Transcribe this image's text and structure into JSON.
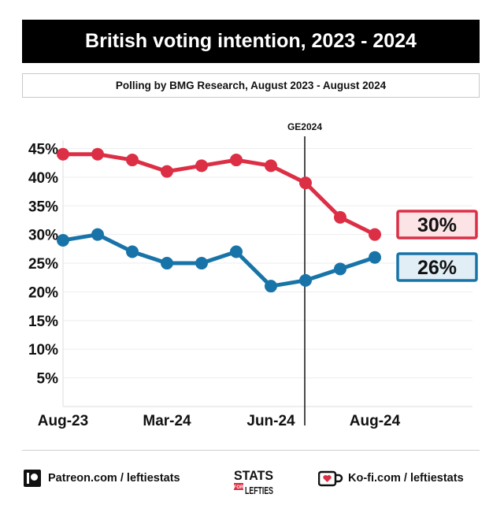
{
  "header": {
    "title": "British voting intention, 2023 - 2024",
    "subtitle": "Polling by BMG Research, August 2023 - August 2024"
  },
  "chart_data": {
    "type": "line",
    "title": "British voting intention, 2023 - 2024",
    "subtitle": "Polling by BMG Research, August 2023 - August 2024",
    "x_tick_labels": [
      "Aug-23",
      "Mar-24",
      "Jun-24",
      "Aug-24"
    ],
    "x_tick_positions": [
      0,
      3,
      6,
      9
    ],
    "y_tick_labels": [
      "45%",
      "40%",
      "35%",
      "30%",
      "25%",
      "20%",
      "15%",
      "10%",
      "5%"
    ],
    "ylim": [
      0,
      45
    ],
    "grid": true,
    "annotation": {
      "label": "GE2024",
      "x": 7
    },
    "series": [
      {
        "color": "#dc2f45",
        "values": [
          44,
          44,
          43,
          41,
          42,
          43,
          42,
          39,
          33,
          30
        ],
        "end_label": "30%"
      },
      {
        "color": "#1874a8",
        "values": [
          29,
          30,
          27,
          25,
          25,
          27,
          21,
          22,
          24,
          26
        ],
        "end_label": "26%"
      }
    ]
  },
  "footer": {
    "patreon": "Patreon.com / leftiestats",
    "kofi": "Ko-fi.com / leftiestats",
    "logo_top": "STATS",
    "logo_mid": "FOR",
    "logo_bottom": "LEFTIES",
    "patreon_icon": "patreon-icon",
    "kofi_icon": "kofi-cup-icon"
  }
}
